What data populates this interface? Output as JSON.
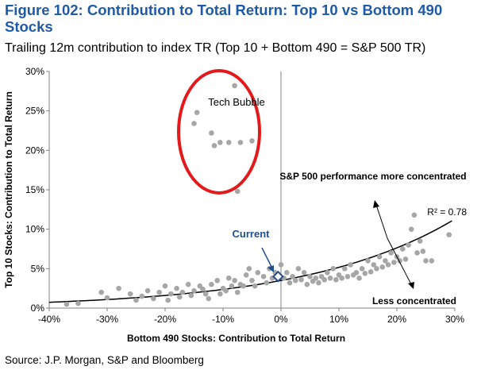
{
  "figure": {
    "title": "Figure 102: Contribution to Total Return: Top 10 vs Bottom 490 Stocks",
    "subtitle": "Trailing 12m contribution to index TR (Top 10 + Bottom 490 = S&P 500 TR)",
    "source": "Source: J.P. Morgan, S&P and Bloomberg"
  },
  "chart_data": {
    "type": "scatter",
    "xlabel": "Bottom 490 Stocks: Contribution to Total Return",
    "ylabel": "Top 10 Stocks: Contribution to Total Return",
    "xlim": [
      -0.4,
      0.3
    ],
    "ylim": [
      0,
      0.3
    ],
    "x_ticks": [
      -0.4,
      -0.3,
      -0.2,
      -0.1,
      0,
      0.1,
      0.2,
      0.3
    ],
    "y_ticks": [
      0,
      0.05,
      0.1,
      0.15,
      0.2,
      0.25,
      0.3
    ],
    "x_tick_labels": [
      "-40%",
      "-30%",
      "-20%",
      "-10%",
      "0%",
      "10%",
      "20%",
      "30%"
    ],
    "y_tick_labels": [
      "0%",
      "5%",
      "10%",
      "15%",
      "20%",
      "25%",
      "30%"
    ],
    "grid": false,
    "colors": {
      "points": "#a6a6a6",
      "current": "#1f4e8c",
      "circle": "#e31a1c",
      "title": "#1f5aa6",
      "trend": "#000000"
    },
    "annotations": {
      "tech_bubble": "Tech Bubble",
      "current": "Current",
      "r_squared": "R² = 0.78",
      "more_concentrated": "S&P 500 performance more concentrated",
      "less_concentrated": "Less concentrated"
    },
    "current_point": [
      -0.005,
      0.04
    ],
    "trendline": {
      "type": "exponential",
      "a": 0.035,
      "b": 3.9
    },
    "tech_bubble_points": [
      [
        -0.145,
        0.248
      ],
      [
        -0.15,
        0.234
      ],
      [
        -0.12,
        0.222
      ],
      [
        -0.115,
        0.206
      ],
      [
        -0.105,
        0.21
      ],
      [
        -0.09,
        0.21
      ],
      [
        -0.07,
        0.21
      ],
      [
        -0.05,
        0.212
      ],
      [
        -0.08,
        0.282
      ],
      [
        -0.075,
        0.148
      ]
    ],
    "points": [
      [
        -0.37,
        0.005
      ],
      [
        -0.35,
        0.006
      ],
      [
        -0.31,
        0.02
      ],
      [
        -0.3,
        0.013
      ],
      [
        -0.28,
        0.025
      ],
      [
        -0.25,
        0.01
      ],
      [
        -0.24,
        0.015
      ],
      [
        -0.22,
        0.012
      ],
      [
        -0.21,
        0.02
      ],
      [
        -0.2,
        0.028
      ],
      [
        -0.19,
        0.018
      ],
      [
        -0.18,
        0.025
      ],
      [
        -0.17,
        0.02
      ],
      [
        -0.16,
        0.03
      ],
      [
        -0.15,
        0.022
      ],
      [
        -0.14,
        0.028
      ],
      [
        -0.13,
        0.018
      ],
      [
        -0.12,
        0.03
      ],
      [
        -0.11,
        0.035
      ],
      [
        -0.1,
        0.025
      ],
      [
        -0.09,
        0.038
      ],
      [
        -0.085,
        0.028
      ],
      [
        -0.08,
        0.035
      ],
      [
        -0.07,
        0.03
      ],
      [
        -0.06,
        0.042
      ],
      [
        -0.05,
        0.035
      ],
      [
        -0.04,
        0.045
      ],
      [
        -0.03,
        0.04
      ],
      [
        -0.02,
        0.05
      ],
      [
        -0.01,
        0.045
      ],
      [
        0.0,
        0.055
      ],
      [
        0.01,
        0.045
      ],
      [
        0.02,
        0.04
      ],
      [
        0.03,
        0.05
      ],
      [
        0.04,
        0.045
      ],
      [
        0.05,
        0.04
      ],
      [
        0.06,
        0.038
      ],
      [
        0.07,
        0.04
      ],
      [
        0.08,
        0.045
      ],
      [
        0.09,
        0.05
      ],
      [
        0.1,
        0.042
      ],
      [
        0.11,
        0.05
      ],
      [
        0.12,
        0.055
      ],
      [
        0.13,
        0.045
      ],
      [
        0.14,
        0.05
      ],
      [
        0.15,
        0.06
      ],
      [
        0.16,
        0.055
      ],
      [
        0.17,
        0.065
      ],
      [
        0.18,
        0.06
      ],
      [
        0.19,
        0.07
      ],
      [
        0.2,
        0.065
      ],
      [
        0.21,
        0.075
      ],
      [
        0.22,
        0.08
      ],
      [
        0.225,
        0.1
      ],
      [
        0.23,
        0.118
      ],
      [
        0.24,
        0.085
      ],
      [
        0.25,
        0.06
      ],
      [
        0.26,
        0.06
      ],
      [
        0.29,
        0.093
      ],
      [
        -0.26,
        0.018
      ],
      [
        -0.23,
        0.022
      ],
      [
        -0.195,
        0.01
      ],
      [
        -0.175,
        0.014
      ],
      [
        -0.155,
        0.016
      ],
      [
        -0.135,
        0.024
      ],
      [
        -0.125,
        0.012
      ],
      [
        -0.105,
        0.018
      ],
      [
        -0.095,
        0.022
      ],
      [
        -0.075,
        0.02
      ],
      [
        -0.065,
        0.028
      ],
      [
        -0.055,
        0.05
      ],
      [
        -0.045,
        0.028
      ],
      [
        -0.025,
        0.032
      ],
      [
        -0.015,
        0.038
      ],
      [
        0.005,
        0.038
      ],
      [
        0.015,
        0.032
      ],
      [
        0.025,
        0.035
      ],
      [
        0.035,
        0.036
      ],
      [
        0.045,
        0.03
      ],
      [
        0.055,
        0.034
      ],
      [
        0.065,
        0.032
      ],
      [
        0.075,
        0.036
      ],
      [
        0.085,
        0.038
      ],
      [
        0.095,
        0.036
      ],
      [
        0.105,
        0.038
      ],
      [
        0.115,
        0.04
      ],
      [
        0.125,
        0.042
      ],
      [
        0.135,
        0.038
      ],
      [
        0.145,
        0.044
      ],
      [
        0.155,
        0.046
      ],
      [
        0.165,
        0.05
      ],
      [
        0.175,
        0.052
      ],
      [
        0.185,
        0.055
      ],
      [
        0.195,
        0.058
      ],
      [
        0.205,
        0.06
      ],
      [
        0.215,
        0.062
      ],
      [
        0.235,
        0.07
      ],
      [
        0.245,
        0.072
      ]
    ]
  }
}
